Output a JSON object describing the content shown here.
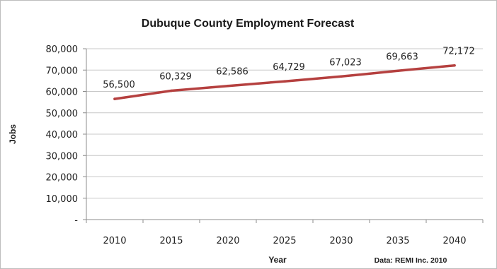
{
  "chart_data": {
    "type": "line",
    "title": "Dubuque County Employment Forecast",
    "xlabel": "Year",
    "ylabel": "Jobs",
    "source_note": "Data: REMI Inc. 2010",
    "x": [
      "2010",
      "2015",
      "2020",
      "2025",
      "2030",
      "2035",
      "2040"
    ],
    "series": [
      {
        "values": [
          56500,
          60329,
          62586,
          64729,
          67023,
          69663,
          72172
        ],
        "data_labels": [
          "56,500",
          "60,329",
          "62,586",
          "64,729",
          "67,023",
          "69,663",
          "72,172"
        ],
        "color": "#b5403f"
      }
    ],
    "ylim": [
      0,
      80000
    ],
    "y_ticks": [
      0,
      10000,
      20000,
      30000,
      40000,
      50000,
      60000,
      70000,
      80000
    ],
    "y_tick_labels": [
      "-",
      "10,000",
      "20,000",
      "30,000",
      "40,000",
      "50,000",
      "60,000",
      "70,000",
      "80,000"
    ],
    "grid": true,
    "legend": "none",
    "gridline_color": "#c8c8c8",
    "axis_color": "#8c8c8c"
  }
}
